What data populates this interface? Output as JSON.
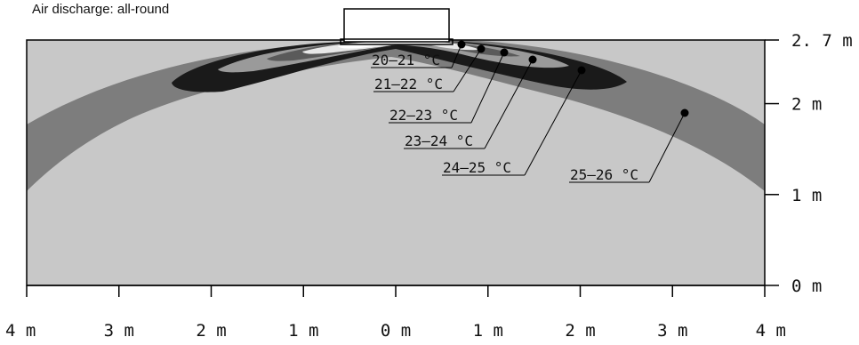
{
  "caption": "Air discharge: all-round",
  "x_axis": {
    "tick_labels": [
      "4 m",
      "3 m",
      "2 m",
      "1 m",
      "0 m",
      "1 m",
      "2 m",
      "3 m",
      "4 m"
    ]
  },
  "y_axis": {
    "tick_labels": [
      "0 m",
      "1 m",
      "2 m",
      "2. 7 m"
    ]
  },
  "temperature_zones": [
    {
      "label": "20–21 °C",
      "fill": "#ffffff"
    },
    {
      "label": "21–22 °C",
      "fill": "#e8e8e8"
    },
    {
      "label": "22–23 °C",
      "fill": "#5a5a5a"
    },
    {
      "label": "23–24 °C",
      "fill": "#9a9a9a"
    },
    {
      "label": "24–25 °C",
      "fill": "#1a1a1a"
    },
    {
      "label": "25–26 °C",
      "fill": "#7d7d7d"
    }
  ],
  "background_fill": "#c8c8c8"
}
